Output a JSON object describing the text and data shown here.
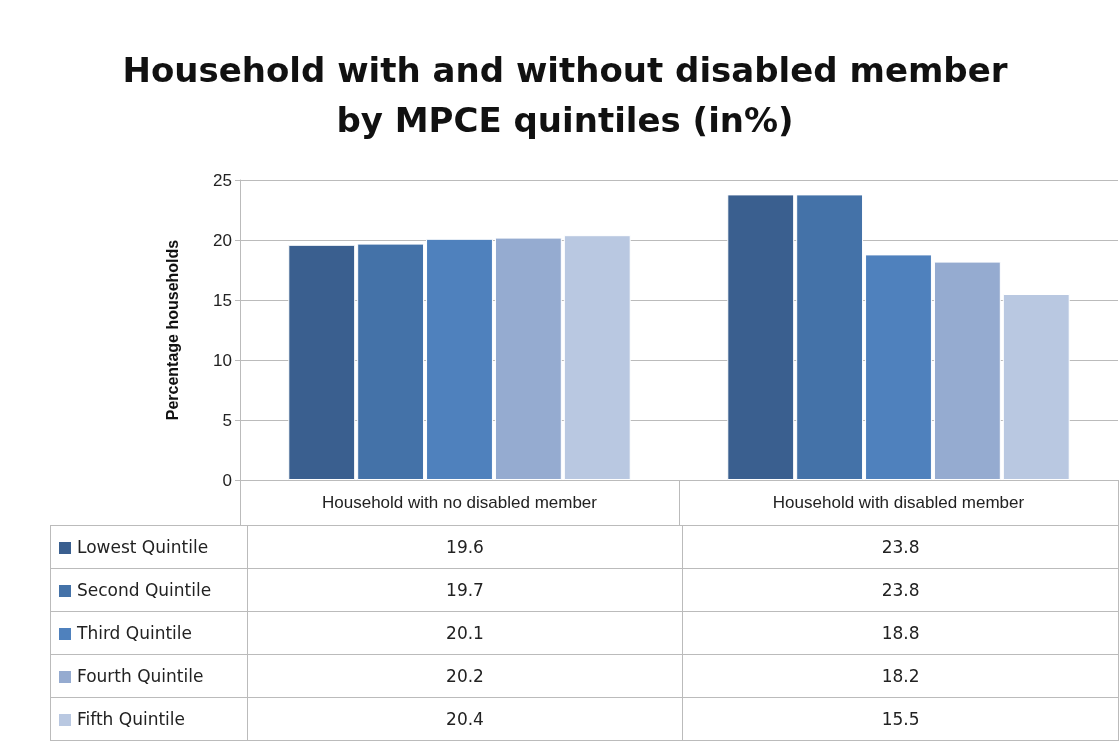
{
  "chart_data": {
    "type": "bar",
    "title": "Household with and without disabled member\nby MPCE quintiles (in%)",
    "ylabel": "Percentage households",
    "categories": [
      "Household with no disabled member",
      "Household with disabled member"
    ],
    "series": [
      {
        "name": "Lowest Quintile",
        "color": "#3a5f8f",
        "values": [
          19.6,
          23.8
        ]
      },
      {
        "name": "Second Quintile",
        "color": "#4472a8",
        "values": [
          19.7,
          23.8
        ]
      },
      {
        "name": "Third Quintile",
        "color": "#4f81bd",
        "values": [
          20.1,
          18.8
        ]
      },
      {
        "name": "Fourth Quintile",
        "color": "#95abd0",
        "values": [
          20.2,
          18.2
        ]
      },
      {
        "name": "Fifth Quintile",
        "color": "#b9c8e1",
        "values": [
          20.4,
          15.5
        ]
      }
    ],
    "ylim": [
      0,
      25
    ],
    "yticks": [
      0,
      5,
      10,
      15,
      20,
      25
    ],
    "grid": "y",
    "legend": "bottom left",
    "data_labels": true
  }
}
